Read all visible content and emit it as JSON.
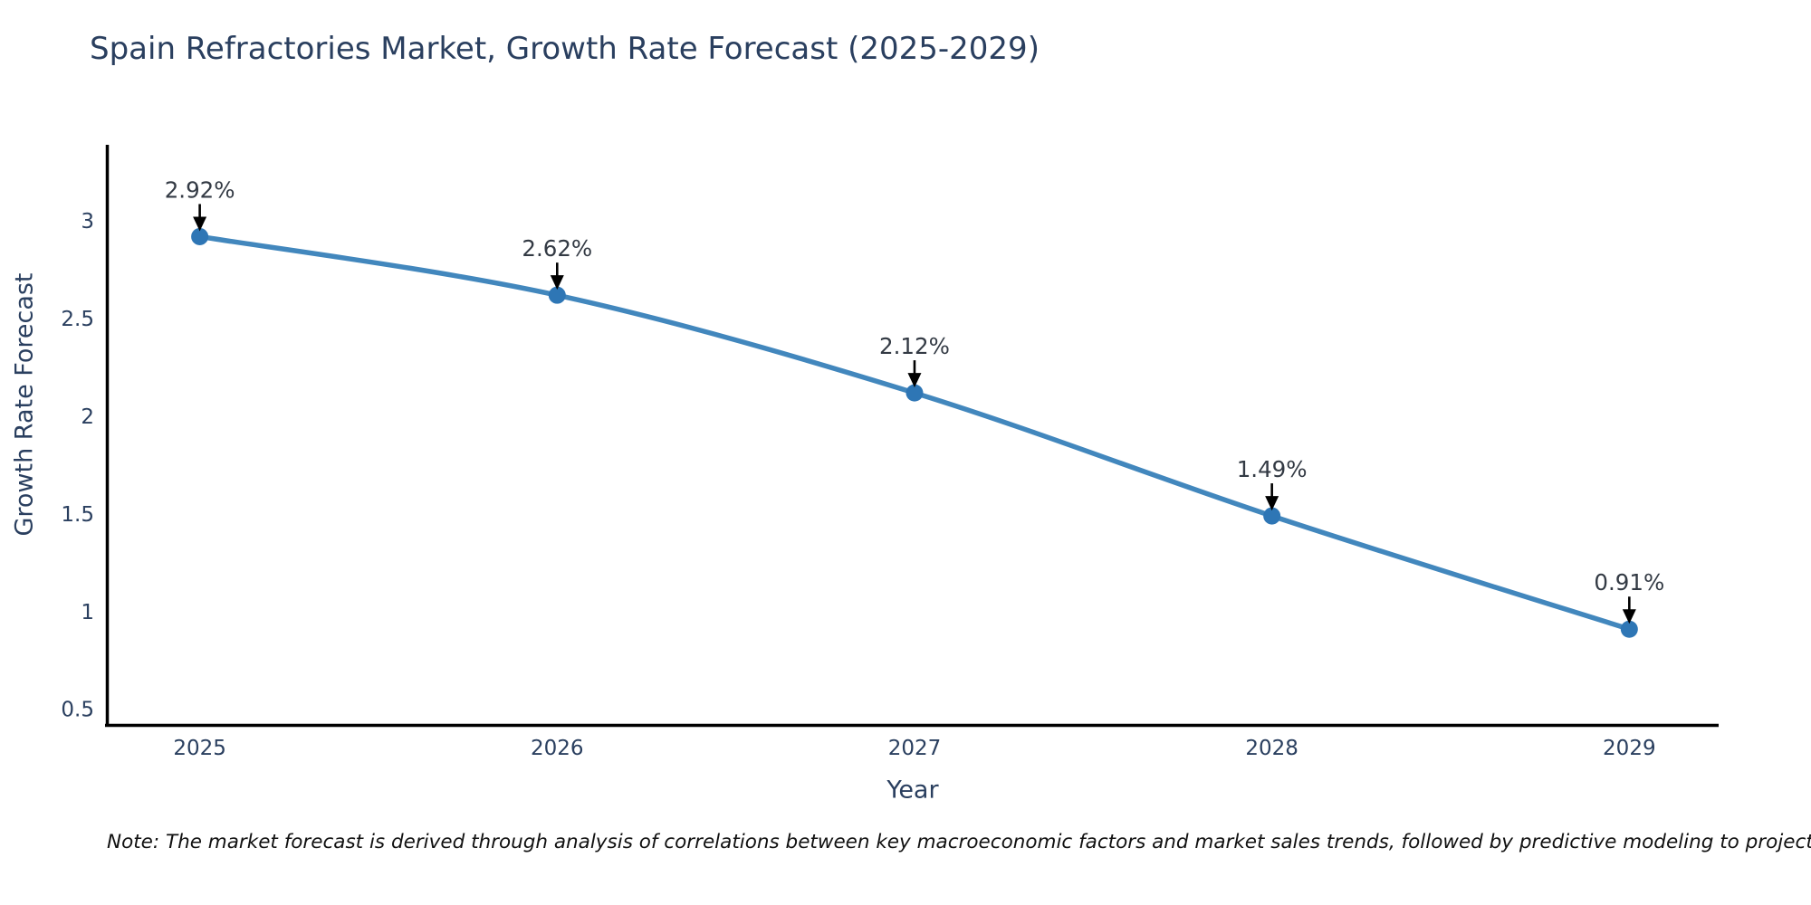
{
  "note": "Note: The market forecast is derived through analysis of correlations between key macroeconomic factors and market sales trends, followed by predictive modeling to project future sales",
  "chart_data": {
    "type": "line",
    "title": "Spain Refractories Market, Growth Rate Forecast (2025-2029)",
    "xlabel": "Year",
    "ylabel": "Growth Rate Forecast",
    "x": [
      2025,
      2026,
      2027,
      2028,
      2029
    ],
    "values": [
      2.92,
      2.62,
      2.12,
      1.49,
      0.91
    ],
    "point_labels": [
      "2.92%",
      "2.62%",
      "2.12%",
      "1.49%",
      "0.91%"
    ],
    "xticks": [
      "2025",
      "2026",
      "2027",
      "2028",
      "2029"
    ],
    "yticks": [
      "0.5",
      "1",
      "1.5",
      "2",
      "2.5",
      "3"
    ],
    "ytick_values": [
      0.5,
      1,
      1.5,
      2,
      2.5,
      3
    ],
    "xlim": [
      2024.74,
      2029.25
    ],
    "ylim": [
      0.42,
      3.39
    ],
    "grid": false,
    "legend": "none",
    "line_color": "#4287bd",
    "marker_color": "#2e76b5",
    "axis_color": "#000000",
    "tick_label_color": "#2a3f5f",
    "annotation_text_color": "#333a44",
    "annotation_arrow_color": "#000000",
    "title_color": "#2a3f5f"
  }
}
